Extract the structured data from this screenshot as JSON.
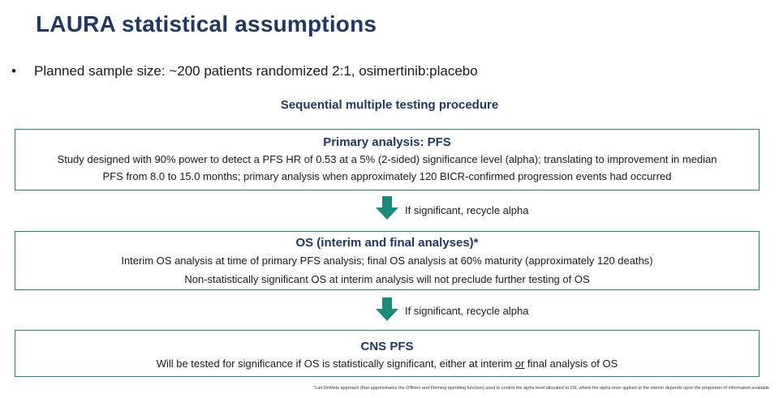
{
  "title": "LAURA statistical assumptions",
  "bullet": {
    "symbol": "•",
    "text": "Planned sample size: ~200 patients randomized 2:1, osimertinib:placebo"
  },
  "procedure_heading": "Sequential multiple testing procedure",
  "boxes": {
    "primary": {
      "heading": "Primary analysis: PFS",
      "line1": "Study designed with 90% power to detect a PFS HR of 0.53 at a 5% (2-sided) significance level (alpha); translating to improvement in median",
      "line2": "PFS from 8.0 to 15.0 months; primary analysis when approximately 120 BICR-confirmed progression events had occurred"
    },
    "os": {
      "heading": "OS (interim and final analyses)*",
      "line1": "Interim OS analysis at time of primary PFS analysis; final OS analysis at 60% maturity (approximately 120 deaths)",
      "line2": "Non-statistically significant OS at interim analysis will not preclude further testing of OS"
    },
    "cns": {
      "heading": "CNS PFS",
      "line1_before": "Will be tested for significance if OS is statistically significant, either at interim ",
      "line1_or": "or",
      "line1_after": " final analysis of OS"
    }
  },
  "arrows": {
    "first_label": "If significant, recycle alpha",
    "second_label": "If significant, recycle alpha",
    "icon": "down-arrow-icon"
  },
  "footnote": "*Lan DeMets approach (that approximates the O'Brien and Fleming spending function) used to control the alpha level allocated to OS, where the alpha level applied at the interim depends upon the proportion of information available",
  "colors": {
    "title": "#1f3864",
    "box_border": "#1b8a7a",
    "arrow": "#1b8a7a"
  }
}
